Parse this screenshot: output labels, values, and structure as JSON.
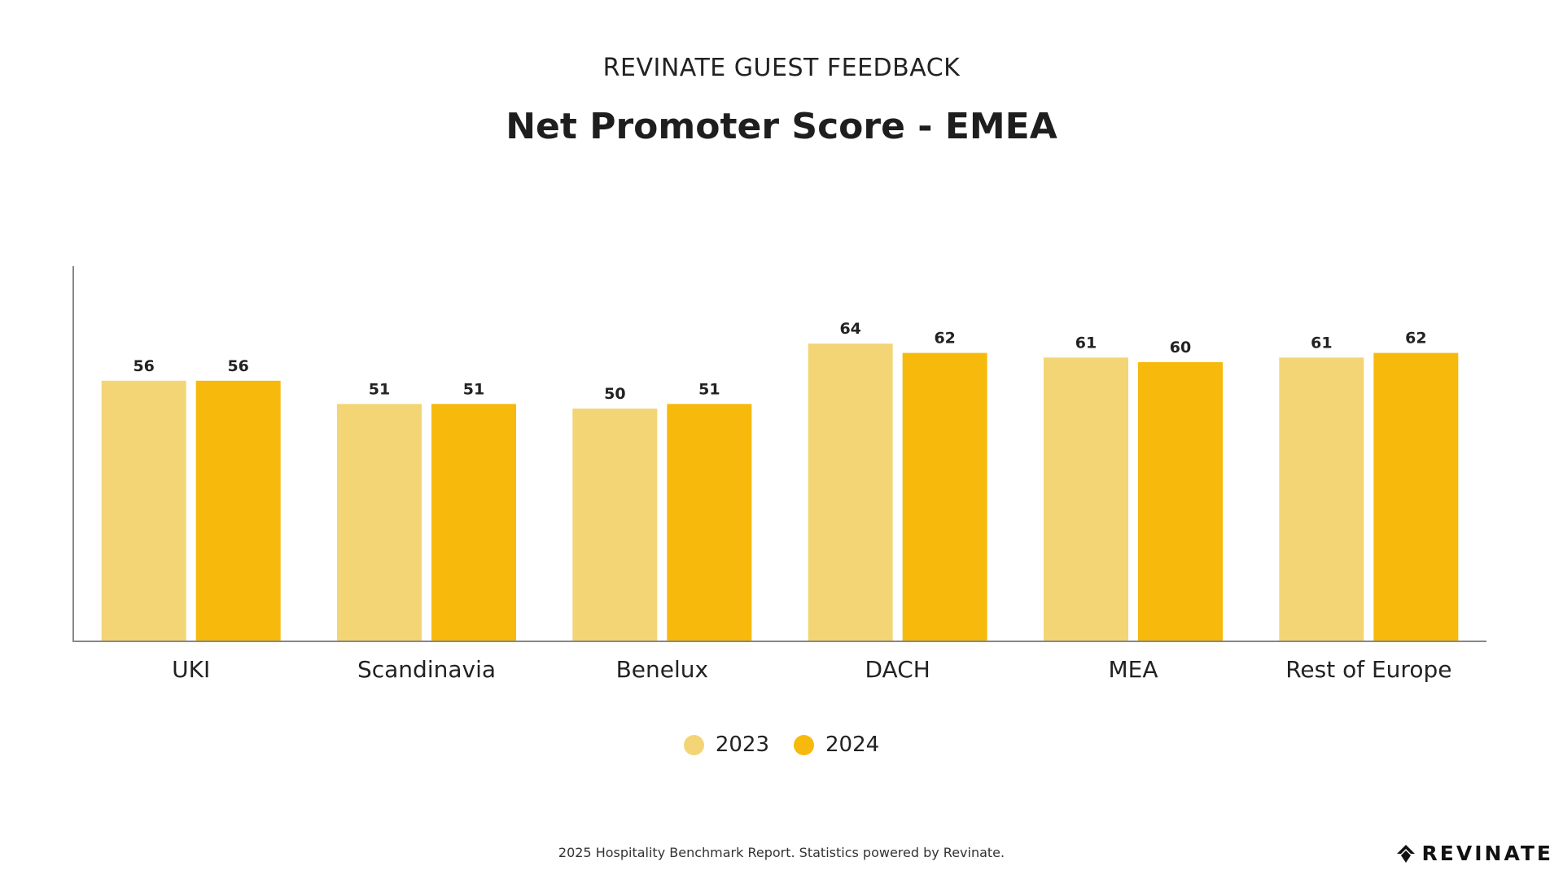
{
  "header": {
    "supertitle": "REVINATE GUEST FEEDBACK",
    "title": "Net Promoter Score - EMEA"
  },
  "chart_data": {
    "type": "bar",
    "title": "Net Promoter Score - EMEA",
    "categories": [
      "UKI",
      "Scandinavia",
      "Benelux",
      "DACH",
      "MEA",
      "Rest of Europe"
    ],
    "series": [
      {
        "name": "2023",
        "values": [
          56,
          51,
          50,
          64,
          61,
          61
        ],
        "color": "#f3d576"
      },
      {
        "name": "2024",
        "values": [
          56,
          51,
          51,
          62,
          60,
          62
        ],
        "color": "#f7b90c"
      }
    ],
    "ylim": [
      0,
      80
    ],
    "grid": false,
    "y_tick_labels_shown": false,
    "data_labels": true,
    "legend_position": "bottom"
  },
  "legend": {
    "items": [
      {
        "label": "2023",
        "color": "#f3d576"
      },
      {
        "label": "2024",
        "color": "#f7b90c"
      }
    ]
  },
  "footer": {
    "text": "2025 Hospitality Benchmark Report. Statistics powered by Revinate."
  },
  "brand": {
    "logo_text": "REVINATE",
    "icon": "revinate-logo-icon"
  },
  "colors": {
    "axis": "#888888",
    "text": "#222222"
  }
}
